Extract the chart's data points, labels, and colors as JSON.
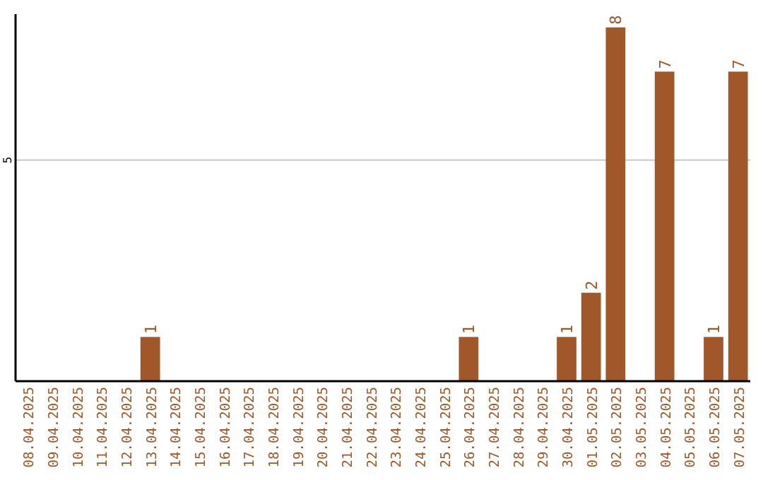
{
  "chart_data": {
    "type": "bar",
    "categories": [
      "08.04.2025",
      "09.04.2025",
      "10.04.2025",
      "11.04.2025",
      "12.04.2025",
      "13.04.2025",
      "14.04.2025",
      "15.04.2025",
      "16.04.2025",
      "17.04.2025",
      "18.04.2025",
      "19.04.2025",
      "20.04.2025",
      "21.04.2025",
      "22.04.2025",
      "23.04.2025",
      "24.04.2025",
      "25.04.2025",
      "26.04.2025",
      "27.04.2025",
      "28.04.2025",
      "29.04.2025",
      "30.04.2025",
      "01.05.2025",
      "02.05.2025",
      "03.05.2025",
      "04.05.2025",
      "05.05.2025",
      "06.05.2025",
      "07.05.2025"
    ],
    "values": [
      0,
      0,
      0,
      0,
      0,
      1,
      0,
      0,
      0,
      0,
      0,
      0,
      0,
      0,
      0,
      0,
      0,
      0,
      1,
      0,
      0,
      0,
      1,
      2,
      8,
      0,
      7,
      0,
      1,
      7
    ],
    "value_labels": [
      null,
      null,
      null,
      null,
      null,
      "1",
      null,
      null,
      null,
      null,
      null,
      null,
      null,
      null,
      null,
      null,
      null,
      null,
      "1",
      null,
      null,
      null,
      "1",
      "2",
      "8",
      null,
      "7",
      null,
      "1",
      "7"
    ],
    "color": "#a0572a",
    "ylim": [
      0,
      8.3
    ],
    "yticks": [
      5
    ],
    "grid": "y"
  }
}
